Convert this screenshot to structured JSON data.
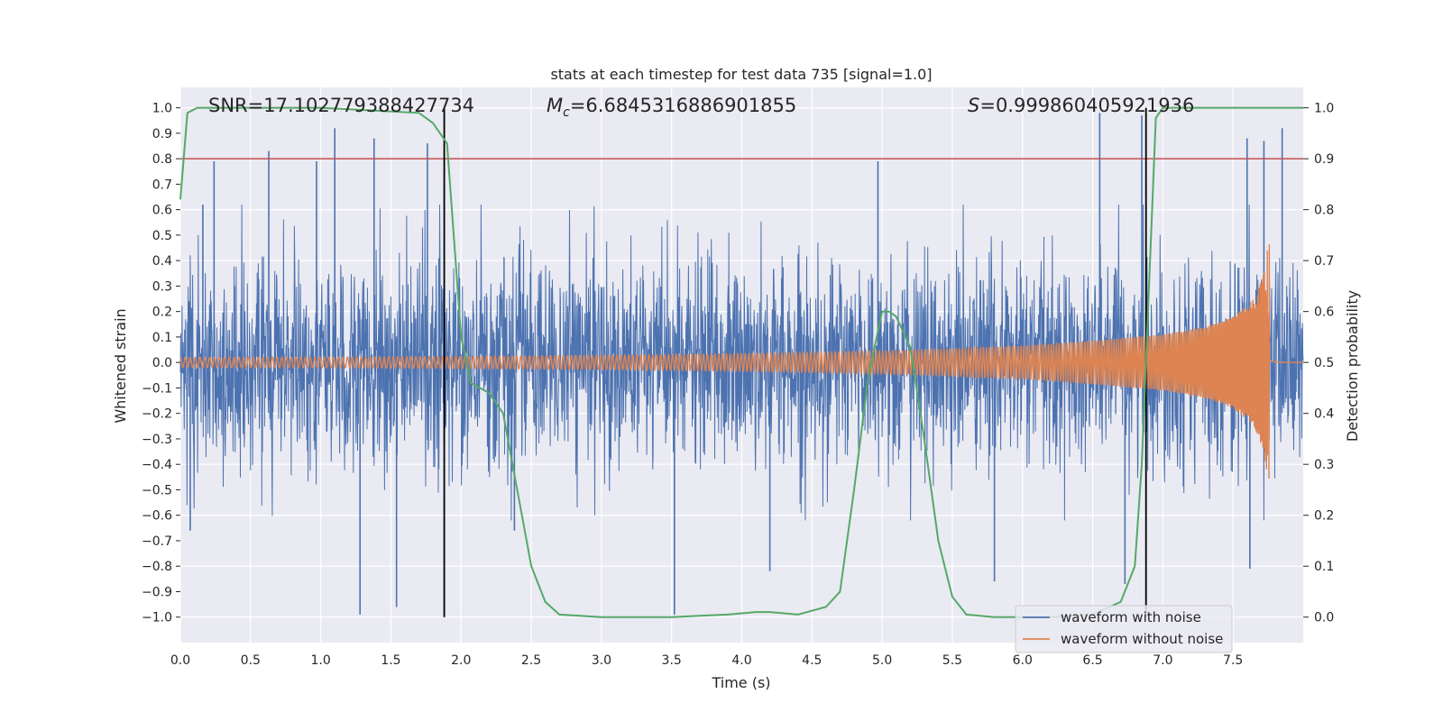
{
  "chart_data": {
    "type": "line",
    "title": "stats at each timestep for test data 735 [signal=1.0]",
    "xlabel": "Time (s)",
    "ylabel_left": "Whitened strain",
    "ylabel_right": "Detection probability",
    "xlim": [
      0.0,
      8.0
    ],
    "ylim_left": [
      -1.1,
      1.08
    ],
    "ylim_right": [
      0.0,
      1.0
    ],
    "xticks": [
      0.0,
      0.5,
      1.0,
      1.5,
      2.0,
      2.5,
      3.0,
      3.5,
      4.0,
      4.5,
      5.0,
      5.5,
      6.0,
      6.5,
      7.0,
      7.5
    ],
    "xtick_labels": [
      "0.0",
      "0.5",
      "1.0",
      "1.5",
      "2.0",
      "2.5",
      "3.0",
      "3.5",
      "4.0",
      "4.5",
      "5.0",
      "5.5",
      "6.0",
      "6.5",
      "7.0",
      "7.5"
    ],
    "yticks_left": [
      1.0,
      0.9,
      0.8,
      0.7,
      0.6,
      0.5,
      0.4,
      0.3,
      0.2,
      0.1,
      0.0,
      -0.1,
      -0.2,
      -0.3,
      -0.4,
      -0.5,
      -0.6,
      -0.7,
      -0.8,
      -0.9,
      -1.0
    ],
    "ytick_labels_left": [
      "1.0",
      "0.9",
      "0.8",
      "0.7",
      "0.6",
      "0.5",
      "0.4",
      "0.3",
      "0.2",
      "0.1",
      "0.0",
      "−0.1",
      "−0.2",
      "−0.3",
      "−0.4",
      "−0.5",
      "−0.6",
      "−0.7",
      "−0.8",
      "−0.9",
      "−1.0"
    ],
    "yticks_right": [
      1.0,
      0.9,
      0.8,
      0.7,
      0.6,
      0.5,
      0.4,
      0.3,
      0.2,
      0.1,
      0.0
    ],
    "ytick_labels_right": [
      "1.0",
      "0.9",
      "0.8",
      "0.7",
      "0.6",
      "0.5",
      "0.4",
      "0.3",
      "0.2",
      "0.1",
      "0.0"
    ],
    "annotations": {
      "snr": "SNR=17.102779388427734",
      "mc_symbol": "M",
      "mc_sub": "c",
      "mc_value": "=6.6845316886901855",
      "s_symbol": "S",
      "s_value": "=0.999860405921936"
    },
    "threshold_line": {
      "axis": "right",
      "value": 0.9,
      "color": "#c44e52"
    },
    "vertical_lines": [
      1.88,
      6.88
    ],
    "series": [
      {
        "name": "waveform with noise",
        "axis": "left",
        "color": "#4c72b0",
        "description": "whitened strain noise, amplitude mostly within ±0.5 with spikes near ±1.0",
        "spikes_up": [
          [
            0.16,
            0.62
          ],
          [
            0.24,
            0.79
          ],
          [
            0.63,
            0.83
          ],
          [
            0.97,
            0.79
          ],
          [
            1.1,
            0.92
          ],
          [
            1.38,
            0.88
          ],
          [
            1.76,
            0.86
          ],
          [
            4.97,
            0.79
          ],
          [
            6.55,
            0.98
          ],
          [
            6.85,
            0.97
          ],
          [
            7.6,
            0.88
          ],
          [
            7.72,
            0.87
          ],
          [
            7.85,
            0.92
          ]
        ],
        "spikes_down": [
          [
            0.07,
            -0.66
          ],
          [
            1.28,
            -0.99
          ],
          [
            1.54,
            -0.96
          ],
          [
            2.38,
            -0.66
          ],
          [
            3.52,
            -0.99
          ],
          [
            4.2,
            -0.82
          ],
          [
            5.8,
            -0.86
          ],
          [
            6.73,
            -0.87
          ],
          [
            7.62,
            -0.81
          ]
        ]
      },
      {
        "name": "waveform without noise",
        "axis": "left",
        "color": "#dd8452",
        "description": "chirp signal, amplitude growing from ~0.02 to ~0.5, merging at ~7.76 s",
        "envelope_x": [
          0.0,
          1.0,
          2.0,
          3.0,
          4.0,
          5.0,
          6.0,
          6.5,
          7.0,
          7.3,
          7.5,
          7.65,
          7.72,
          7.76
        ],
        "envelope_amp": [
          0.02,
          0.021,
          0.024,
          0.028,
          0.034,
          0.044,
          0.065,
          0.085,
          0.11,
          0.14,
          0.18,
          0.25,
          0.35,
          0.5
        ],
        "merger_time": 7.76
      },
      {
        "name": "detection probability",
        "axis": "right",
        "color": "#55a868",
        "x": [
          0.0,
          0.05,
          0.12,
          0.3,
          1.0,
          1.7,
          1.8,
          1.9,
          2.0,
          2.07,
          2.2,
          2.3,
          2.4,
          2.5,
          2.6,
          2.7,
          3.0,
          3.5,
          3.9,
          4.1,
          4.2,
          4.4,
          4.6,
          4.7,
          4.8,
          4.9,
          5.0,
          5.05,
          5.1,
          5.2,
          5.3,
          5.4,
          5.5,
          5.6,
          5.8,
          6.2,
          6.5,
          6.7,
          6.8,
          6.85,
          6.95,
          7.0,
          7.5,
          8.0
        ],
        "y": [
          0.82,
          0.99,
          1.0,
          1.0,
          1.0,
          0.99,
          0.97,
          0.93,
          0.55,
          0.46,
          0.44,
          0.4,
          0.25,
          0.1,
          0.03,
          0.005,
          0.0,
          0.0,
          0.005,
          0.01,
          0.01,
          0.005,
          0.02,
          0.05,
          0.25,
          0.47,
          0.6,
          0.6,
          0.59,
          0.53,
          0.35,
          0.15,
          0.04,
          0.005,
          0.0,
          0.0,
          0.005,
          0.03,
          0.1,
          0.3,
          0.98,
          1.0,
          1.0,
          1.0
        ]
      }
    ],
    "legend": {
      "placement": "lower-right",
      "entries": [
        {
          "label": "waveform with noise",
          "color": "#4c72b0"
        },
        {
          "label": "waveform without noise",
          "color": "#dd8452"
        }
      ]
    }
  }
}
